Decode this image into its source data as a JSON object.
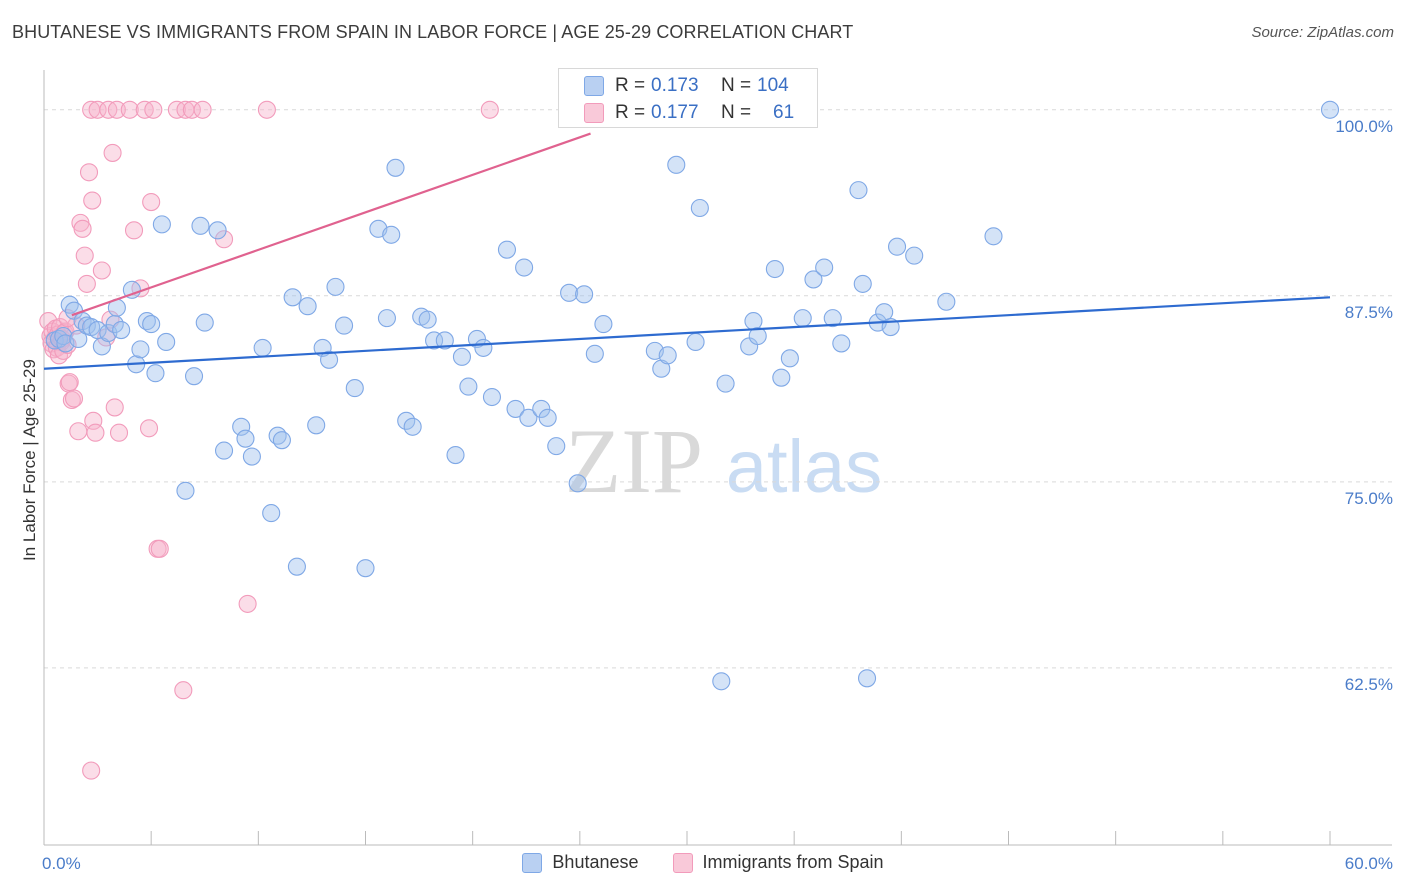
{
  "title": "BHUTANESE VS IMMIGRANTS FROM SPAIN IN LABOR FORCE | AGE 25-29 CORRELATION CHART",
  "source": "Source: ZipAtlas.com",
  "colors": {
    "blue": "#7fa8e6",
    "pink": "#f29bbb",
    "blue_line": "#2e6bd0",
    "pink_line": "#e0628f",
    "tick_text": "#4a7cc9"
  },
  "legend_box": {
    "rows": [
      {
        "r_label": "R =",
        "r_value": "0.173",
        "n_label": "N =",
        "n_value": "104"
      },
      {
        "r_label": "R =",
        "r_value": "0.177",
        "n_label": "N =",
        "n_value": "61"
      }
    ]
  },
  "watermark": {
    "zip": "ZIP",
    "atlas": "atlas"
  },
  "chart_data": {
    "type": "scatter",
    "title": "BHUTANESE VS IMMIGRANTS FROM SPAIN IN LABOR FORCE | AGE 25-29 CORRELATION CHART",
    "xlabel": "",
    "ylabel": "In Labor Force | Age 25-29",
    "xlim": [
      0,
      60
    ],
    "ylim": [
      50.6,
      102
    ],
    "x_tick_labels": {
      "left": "0.0%",
      "right": "60.0%"
    },
    "y_ticks": [
      {
        "value": 100,
        "label": "100.0%"
      },
      {
        "value": 87.5,
        "label": "87.5%"
      },
      {
        "value": 75,
        "label": "75.0%"
      },
      {
        "value": 62.5,
        "label": "62.5%"
      }
    ],
    "series": [
      {
        "name": "Bhutanese",
        "trend": {
          "x0": 0,
          "y0": 82.6,
          "x1": 60,
          "y1": 87.4
        },
        "points": [
          [
            0.5,
            84.5
          ],
          [
            0.7,
            84.6
          ],
          [
            0.9,
            84.8
          ],
          [
            1.0,
            84.3
          ],
          [
            1.2,
            86.9
          ],
          [
            1.4,
            86.5
          ],
          [
            1.6,
            84.6
          ],
          [
            1.8,
            85.8
          ],
          [
            2.0,
            85.5
          ],
          [
            2.2,
            85.4
          ],
          [
            2.5,
            85.2
          ],
          [
            2.7,
            84.1
          ],
          [
            3.0,
            85.0
          ],
          [
            3.3,
            85.6
          ],
          [
            3.4,
            86.7
          ],
          [
            3.6,
            85.2
          ],
          [
            4.1,
            87.9
          ],
          [
            4.3,
            82.9
          ],
          [
            4.5,
            83.9
          ],
          [
            4.8,
            85.8
          ],
          [
            5.0,
            85.6
          ],
          [
            5.2,
            82.3
          ],
          [
            5.5,
            92.3
          ],
          [
            5.7,
            84.4
          ],
          [
            6.6,
            74.4
          ],
          [
            7.0,
            82.1
          ],
          [
            7.3,
            92.2
          ],
          [
            7.5,
            85.7
          ],
          [
            8.1,
            91.9
          ],
          [
            8.4,
            77.1
          ],
          [
            9.2,
            78.7
          ],
          [
            9.4,
            77.9
          ],
          [
            9.7,
            76.7
          ],
          [
            10.2,
            84.0
          ],
          [
            10.6,
            72.9
          ],
          [
            10.9,
            78.1
          ],
          [
            11.1,
            77.8
          ],
          [
            11.6,
            87.4
          ],
          [
            11.8,
            69.3
          ],
          [
            12.3,
            86.8
          ],
          [
            12.7,
            78.8
          ],
          [
            13.0,
            84.0
          ],
          [
            13.3,
            83.2
          ],
          [
            13.6,
            88.1
          ],
          [
            14.0,
            85.5
          ],
          [
            14.5,
            81.3
          ],
          [
            15.0,
            69.2
          ],
          [
            15.6,
            92.0
          ],
          [
            16.0,
            86.0
          ],
          [
            16.2,
            91.6
          ],
          [
            16.4,
            96.1
          ],
          [
            16.9,
            79.1
          ],
          [
            17.2,
            78.7
          ],
          [
            17.6,
            86.1
          ],
          [
            17.9,
            85.9
          ],
          [
            18.2,
            84.5
          ],
          [
            18.7,
            84.5
          ],
          [
            19.2,
            76.8
          ],
          [
            19.5,
            83.4
          ],
          [
            19.8,
            81.4
          ],
          [
            20.2,
            84.6
          ],
          [
            20.5,
            84.0
          ],
          [
            20.9,
            80.7
          ],
          [
            21.6,
            90.6
          ],
          [
            22.0,
            79.9
          ],
          [
            22.4,
            89.4
          ],
          [
            22.6,
            79.3
          ],
          [
            23.2,
            79.9
          ],
          [
            23.5,
            79.3
          ],
          [
            23.9,
            77.4
          ],
          [
            24.5,
            87.7
          ],
          [
            24.9,
            74.9
          ],
          [
            25.2,
            87.6
          ],
          [
            25.7,
            83.6
          ],
          [
            26.1,
            85.6
          ],
          [
            28.5,
            83.8
          ],
          [
            28.8,
            82.6
          ],
          [
            29.1,
            83.5
          ],
          [
            29.5,
            96.3
          ],
          [
            30.4,
            84.4
          ],
          [
            30.6,
            93.4
          ],
          [
            31.6,
            61.6
          ],
          [
            31.8,
            81.6
          ],
          [
            32.9,
            84.1
          ],
          [
            33.1,
            85.8
          ],
          [
            33.3,
            84.8
          ],
          [
            34.1,
            89.3
          ],
          [
            34.4,
            82.0
          ],
          [
            34.8,
            83.3
          ],
          [
            35.4,
            86.0
          ],
          [
            35.9,
            88.6
          ],
          [
            36.4,
            89.4
          ],
          [
            36.8,
            86.0
          ],
          [
            37.2,
            84.3
          ],
          [
            38.0,
            94.6
          ],
          [
            38.2,
            88.3
          ],
          [
            38.4,
            61.8
          ],
          [
            38.9,
            85.7
          ],
          [
            39.2,
            86.4
          ],
          [
            39.5,
            85.4
          ],
          [
            39.8,
            90.8
          ],
          [
            40.6,
            90.2
          ],
          [
            42.1,
            87.1
          ],
          [
            44.3,
            91.5
          ],
          [
            60.0,
            100.0
          ]
        ]
      },
      {
        "name": "Immigrants from Spain",
        "trend": {
          "x0": 1.3,
          "y0": 86.2,
          "x1": 25.5,
          "y1": 98.4
        },
        "points": [
          [
            0.2,
            85.8
          ],
          [
            0.3,
            84.8
          ],
          [
            0.35,
            84.3
          ],
          [
            0.4,
            85.1
          ],
          [
            0.45,
            83.9
          ],
          [
            0.5,
            84.6
          ],
          [
            0.55,
            85.3
          ],
          [
            0.6,
            84.0
          ],
          [
            0.65,
            84.9
          ],
          [
            0.7,
            83.5
          ],
          [
            0.75,
            85.4
          ],
          [
            0.8,
            84.4
          ],
          [
            0.85,
            84.6
          ],
          [
            0.9,
            83.8
          ],
          [
            0.95,
            85.0
          ],
          [
            1.0,
            85.1
          ],
          [
            1.1,
            84.2
          ],
          [
            1.15,
            81.6
          ],
          [
            1.2,
            81.7
          ],
          [
            1.3,
            80.5
          ],
          [
            1.4,
            80.6
          ],
          [
            1.5,
            85.5
          ],
          [
            1.6,
            78.4
          ],
          [
            1.7,
            92.4
          ],
          [
            1.8,
            92.0
          ],
          [
            1.9,
            90.2
          ],
          [
            2.0,
            88.3
          ],
          [
            2.1,
            95.8
          ],
          [
            2.2,
            100.0
          ],
          [
            2.25,
            93.9
          ],
          [
            2.3,
            79.1
          ],
          [
            2.4,
            78.3
          ],
          [
            2.5,
            100.0
          ],
          [
            2.7,
            89.2
          ],
          [
            2.9,
            84.7
          ],
          [
            3.0,
            100.0
          ],
          [
            3.1,
            85.9
          ],
          [
            3.2,
            97.1
          ],
          [
            3.3,
            80.0
          ],
          [
            3.4,
            100.0
          ],
          [
            3.5,
            78.3
          ],
          [
            4.0,
            100.0
          ],
          [
            4.2,
            91.9
          ],
          [
            4.5,
            88.0
          ],
          [
            4.7,
            100.0
          ],
          [
            4.9,
            78.6
          ],
          [
            5.0,
            93.8
          ],
          [
            5.1,
            100.0
          ],
          [
            5.3,
            70.5
          ],
          [
            5.4,
            70.5
          ],
          [
            6.2,
            100.0
          ],
          [
            6.5,
            61.0
          ],
          [
            6.6,
            100.0
          ],
          [
            6.9,
            100.0
          ],
          [
            7.4,
            100.0
          ],
          [
            8.4,
            91.3
          ],
          [
            9.5,
            66.8
          ],
          [
            10.4,
            100.0
          ],
          [
            20.8,
            100.0
          ],
          [
            2.2,
            55.6
          ],
          [
            1.1,
            86.0
          ]
        ]
      }
    ]
  }
}
